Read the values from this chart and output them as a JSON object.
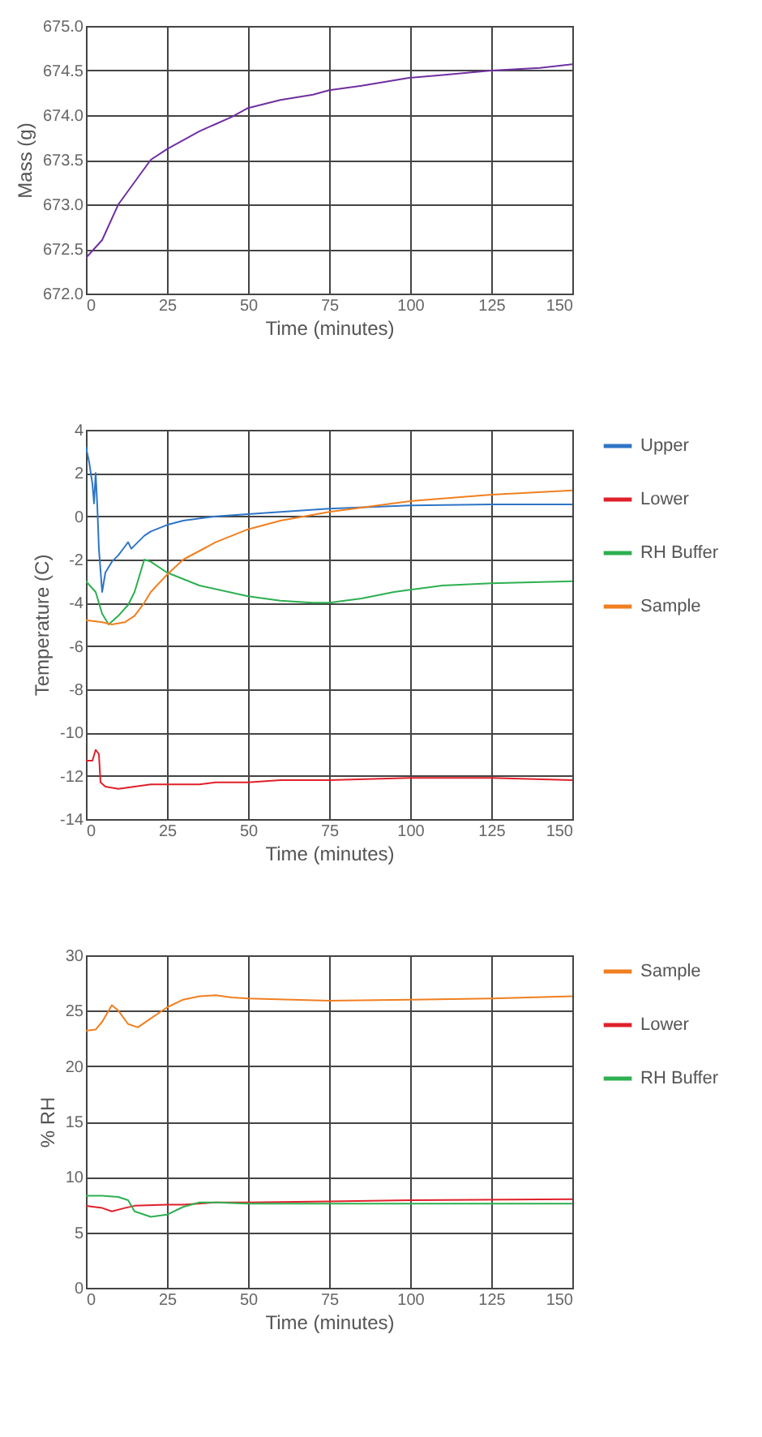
{
  "chart_data": [
    {
      "type": "line",
      "xlabel": "Time (minutes)",
      "ylabel": "Mass (g)",
      "xlim": [
        0,
        150
      ],
      "xticks": [
        0,
        25,
        50,
        75,
        100,
        125,
        150
      ],
      "ylim": [
        672,
        675
      ],
      "yticks": [
        {
          "value": 672,
          "label": "672.0"
        },
        {
          "value": 672.5,
          "label": "672.5"
        },
        {
          "value": 673,
          "label": "673.0"
        },
        {
          "value": 673.5,
          "label": "673.5"
        },
        {
          "value": 674,
          "label": "674.0"
        },
        {
          "value": 674.5,
          "label": "674.5"
        },
        {
          "value": 675,
          "label": "675.0"
        }
      ],
      "grid": true,
      "legend": false,
      "series": [
        {
          "color": "#7030a0",
          "x": [
            0,
            5,
            10,
            15,
            20,
            25,
            30,
            35,
            40,
            45,
            50,
            60,
            70,
            75,
            85,
            100,
            110,
            125,
            140,
            150
          ],
          "values": [
            672.4,
            672.6,
            673.0,
            673.25,
            673.5,
            673.62,
            673.72,
            673.82,
            673.9,
            673.98,
            674.08,
            674.17,
            674.23,
            674.28,
            674.33,
            674.42,
            674.45,
            674.5,
            674.53,
            674.57
          ]
        }
      ]
    },
    {
      "type": "line",
      "xlabel": "Time (minutes)",
      "ylabel": "Temperature (C)",
      "xlim": [
        0,
        150
      ],
      "xticks": [
        0,
        25,
        50,
        75,
        100,
        125,
        150
      ],
      "ylim": [
        -14,
        4
      ],
      "yticks": [
        -14,
        -12,
        -10,
        -8,
        -6,
        -4,
        -2,
        0,
        2,
        4
      ],
      "grid": true,
      "legend": "right",
      "series": [
        {
          "name": "Upper",
          "color": "#2e75c6",
          "x": [
            0,
            1,
            2,
            2.5,
            3,
            3.5,
            4,
            5,
            6,
            8,
            10,
            12,
            13,
            14,
            16,
            18,
            20,
            25,
            30,
            40,
            50,
            60,
            75,
            100,
            125,
            150
          ],
          "values": [
            3.2,
            2.5,
            1.5,
            0.6,
            2.0,
            0.5,
            -1.5,
            -3.5,
            -2.6,
            -2.1,
            -1.8,
            -1.4,
            -1.2,
            -1.5,
            -1.2,
            -0.9,
            -0.7,
            -0.4,
            -0.2,
            0.0,
            0.1,
            0.2,
            0.35,
            0.5,
            0.55,
            0.55
          ]
        },
        {
          "name": "Lower",
          "color": "#e0202a",
          "x": [
            0,
            2,
            3,
            4,
            4.5,
            6,
            10,
            15,
            20,
            25,
            35,
            40,
            50,
            60,
            75,
            100,
            125,
            150
          ],
          "values": [
            -11.3,
            -11.3,
            -10.8,
            -11.0,
            -12.3,
            -12.5,
            -12.6,
            -12.5,
            -12.4,
            -12.4,
            -12.4,
            -12.3,
            -12.3,
            -12.2,
            -12.2,
            -12.1,
            -12.1,
            -12.2
          ]
        },
        {
          "name": "RH Buffer",
          "color": "#2db050",
          "x": [
            0,
            3,
            5,
            7,
            10,
            13,
            15,
            17,
            18,
            20,
            25,
            35,
            50,
            60,
            70,
            75,
            85,
            95,
            100,
            110,
            125,
            150
          ],
          "values": [
            -3.0,
            -3.5,
            -4.5,
            -5.0,
            -4.6,
            -4.1,
            -3.5,
            -2.5,
            -2.0,
            -2.1,
            -2.6,
            -3.2,
            -3.7,
            -3.9,
            -4.0,
            -4.0,
            -3.8,
            -3.5,
            -3.4,
            -3.2,
            -3.1,
            -3.0
          ]
        },
        {
          "name": "Sample",
          "color": "#f07f20",
          "x": [
            0,
            5,
            8,
            12,
            15,
            18,
            20,
            25,
            30,
            40,
            50,
            60,
            75,
            90,
            100,
            125,
            150
          ],
          "values": [
            -4.8,
            -4.9,
            -5.0,
            -4.9,
            -4.6,
            -4.0,
            -3.5,
            -2.7,
            -2.0,
            -1.2,
            -0.6,
            -0.2,
            0.2,
            0.5,
            0.7,
            1.0,
            1.2
          ]
        }
      ]
    },
    {
      "type": "line",
      "xlabel": "Time (minutes)",
      "ylabel": "% RH",
      "xlim": [
        0,
        150
      ],
      "xticks": [
        0,
        25,
        50,
        75,
        100,
        125,
        150
      ],
      "ylim": [
        0,
        30
      ],
      "yticks": [
        0,
        5,
        10,
        15,
        20,
        25,
        30
      ],
      "grid": true,
      "legend": "right",
      "series": [
        {
          "name": "Sample",
          "color": "#f07f20",
          "x": [
            0,
            3,
            5,
            8,
            10,
            13,
            16,
            20,
            25,
            30,
            35,
            40,
            45,
            50,
            75,
            100,
            125,
            150
          ],
          "values": [
            23.2,
            23.3,
            24.0,
            25.5,
            25.0,
            23.8,
            23.5,
            24.3,
            25.3,
            26.0,
            26.3,
            26.4,
            26.2,
            26.1,
            25.9,
            26.0,
            26.1,
            26.3
          ]
        },
        {
          "name": "Lower",
          "color": "#e0202a",
          "x": [
            0,
            5,
            8,
            12,
            15,
            25,
            30,
            40,
            50,
            75,
            100,
            150
          ],
          "values": [
            7.4,
            7.2,
            6.9,
            7.2,
            7.4,
            7.5,
            7.5,
            7.7,
            7.7,
            7.8,
            7.9,
            8.0
          ]
        },
        {
          "name": "RH Buffer",
          "color": "#2db050",
          "x": [
            0,
            5,
            10,
            13,
            15,
            20,
            25,
            30,
            35,
            40,
            50,
            75,
            100,
            150
          ],
          "values": [
            8.3,
            8.3,
            8.2,
            7.9,
            6.9,
            6.4,
            6.6,
            7.3,
            7.7,
            7.7,
            7.6,
            7.6,
            7.6,
            7.6
          ]
        }
      ]
    }
  ]
}
